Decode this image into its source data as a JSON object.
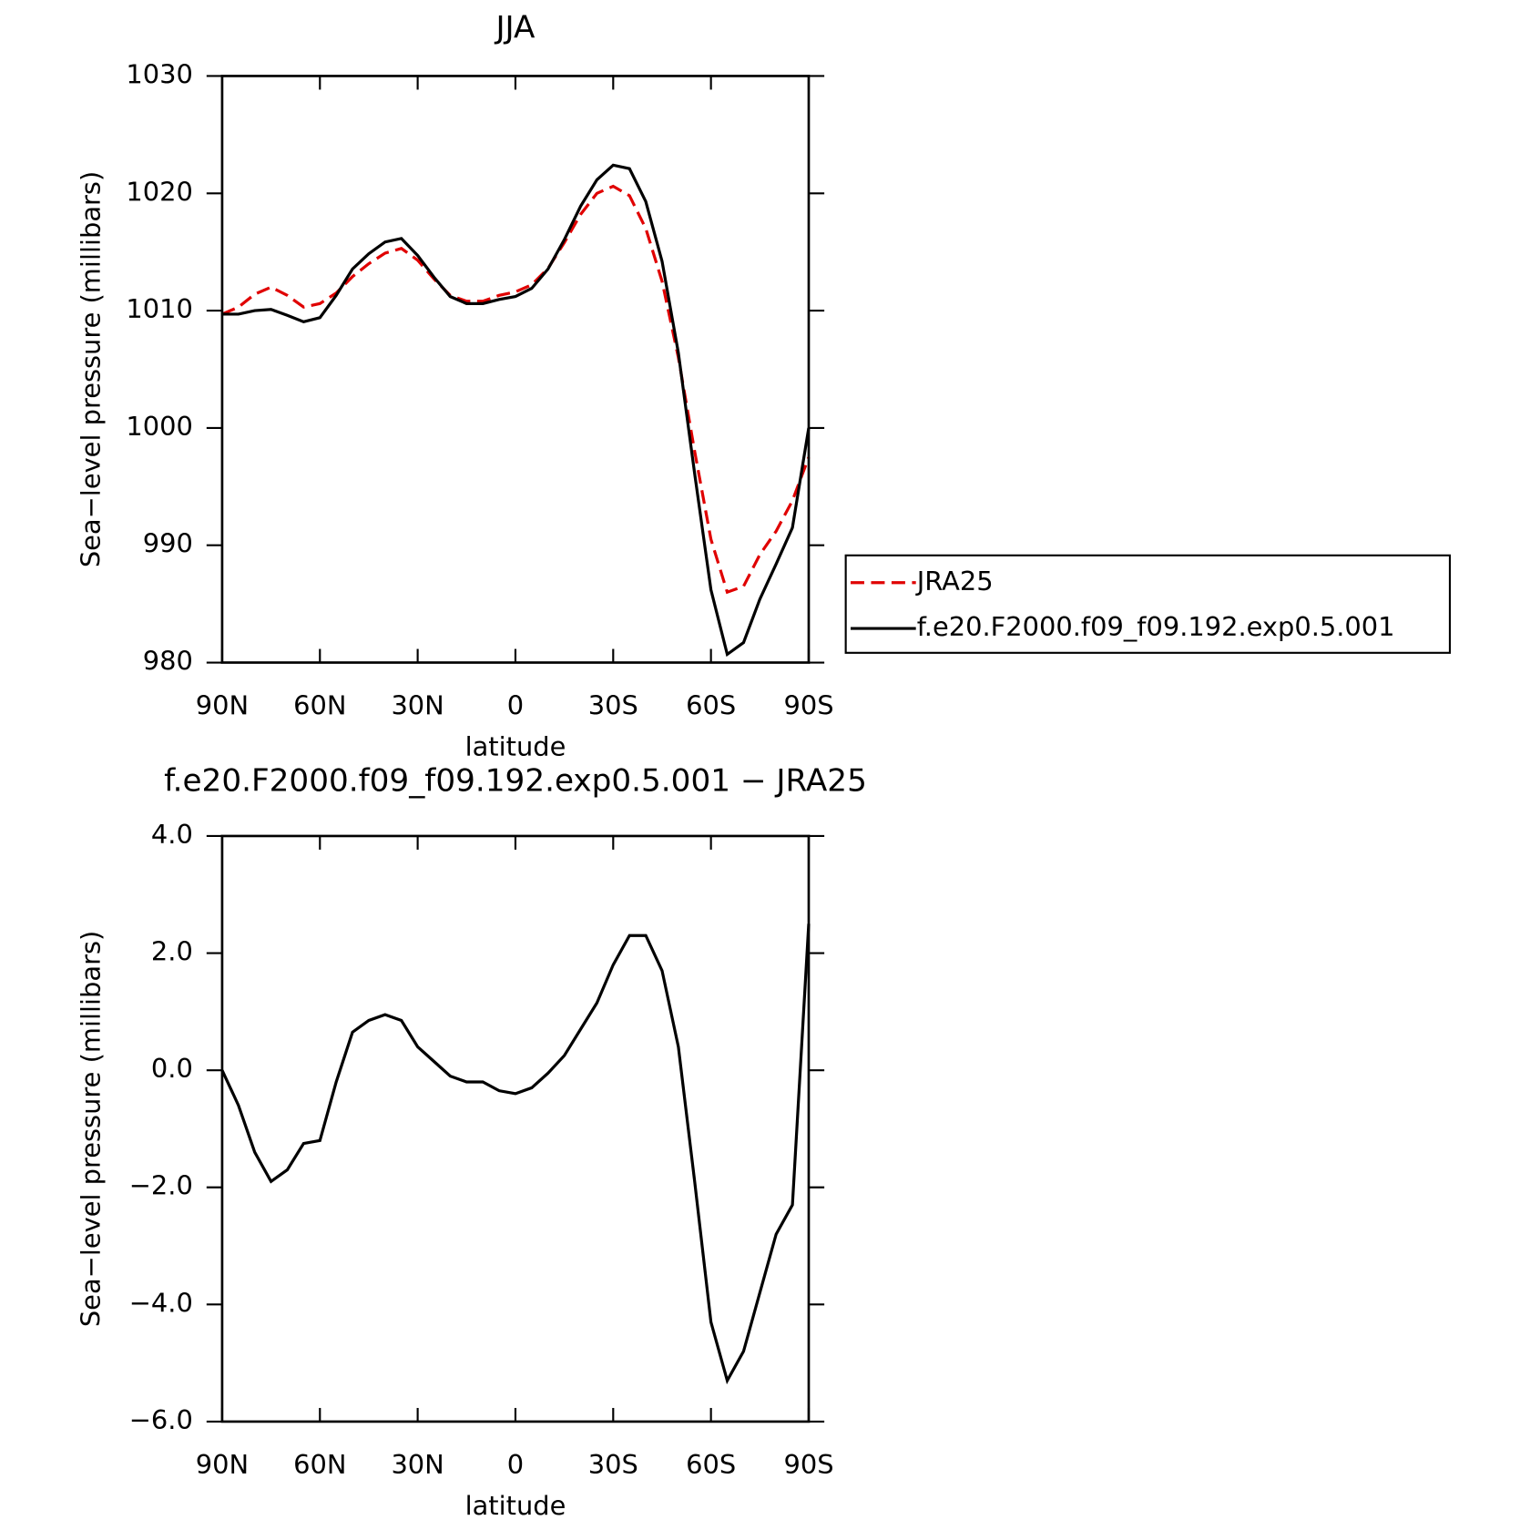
{
  "chart_data": [
    {
      "type": "line",
      "title": "JJA",
      "xlabel": "latitude",
      "ylabel": "Sea−level pressure (millibars)",
      "x": [
        90,
        85,
        80,
        75,
        70,
        65,
        60,
        55,
        50,
        45,
        40,
        35,
        30,
        25,
        20,
        15,
        10,
        5,
        0,
        -5,
        -10,
        -15,
        -20,
        -25,
        -30,
        -35,
        -40,
        -45,
        -50,
        -55,
        -60,
        -65,
        -70,
        -75,
        -80,
        -85,
        -90
      ],
      "xlim": [
        90,
        -90
      ],
      "xticks": [
        {
          "value": 90,
          "label": "90N"
        },
        {
          "value": 60,
          "label": "60N"
        },
        {
          "value": 30,
          "label": "30N"
        },
        0,
        {
          "value": -30,
          "label": "30S"
        },
        {
          "value": -60,
          "label": "60S"
        },
        {
          "value": -90,
          "label": "90S"
        }
      ],
      "ylim": [
        980,
        1030
      ],
      "yticks": [
        980,
        990,
        1000,
        1010,
        1020,
        1030
      ],
      "legend": "right",
      "series": [
        {
          "name": "JRA25",
          "color": "#e00000",
          "line_style": "dashed",
          "values": [
            1009.7,
            1010.3,
            1011.4,
            1012.0,
            1011.3,
            1010.3,
            1010.6,
            1011.5,
            1012.9,
            1014.0,
            1014.9,
            1015.3,
            1014.3,
            1012.7,
            1011.3,
            1010.8,
            1010.8,
            1011.3,
            1011.6,
            1012.2,
            1013.6,
            1015.8,
            1018.2,
            1020.0,
            1020.6,
            1019.8,
            1017.0,
            1012.5,
            1006.0,
            998.0,
            990.5,
            986.0,
            986.5,
            989.2,
            991.2,
            993.8,
            997.5
          ]
        },
        {
          "name": "f.e20.F2000.f09_f09.192.exp0.5.001",
          "color": "#000000",
          "line_style": "solid",
          "values": [
            1009.7,
            1009.7,
            1010.0,
            1010.1,
            1009.6,
            1009.05,
            1009.4,
            1011.3,
            1013.55,
            1014.85,
            1015.85,
            1016.15,
            1014.7,
            1012.85,
            1011.2,
            1010.6,
            1010.6,
            1010.95,
            1011.2,
            1011.9,
            1013.55,
            1016.05,
            1018.9,
            1021.15,
            1022.4,
            1022.1,
            1019.3,
            1014.2,
            1006.4,
            996.1,
            986.2,
            980.7,
            981.7,
            985.4,
            988.4,
            991.5,
            1000.0
          ]
        }
      ]
    },
    {
      "type": "line",
      "title": "f.e20.F2000.f09_f09.192.exp0.5.001 − JRA25",
      "xlabel": "latitude",
      "ylabel": "Sea−level pressure (millibars)",
      "x": [
        90,
        85,
        80,
        75,
        70,
        65,
        60,
        55,
        50,
        45,
        40,
        35,
        30,
        25,
        20,
        15,
        10,
        5,
        0,
        -5,
        -10,
        -15,
        -20,
        -25,
        -30,
        -35,
        -40,
        -45,
        -50,
        -55,
        -60,
        -65,
        -70,
        -75,
        -80,
        -85,
        -90
      ],
      "xlim": [
        90,
        -90
      ],
      "xticks": [
        {
          "value": 90,
          "label": "90N"
        },
        {
          "value": 60,
          "label": "60N"
        },
        {
          "value": 30,
          "label": "30N"
        },
        0,
        {
          "value": -30,
          "label": "30S"
        },
        {
          "value": -60,
          "label": "60S"
        },
        {
          "value": -90,
          "label": "90S"
        }
      ],
      "ylim": [
        -6,
        4
      ],
      "yticks": [
        {
          "value": -6,
          "label": "−6.0"
        },
        {
          "value": -4,
          "label": "−4.0"
        },
        {
          "value": -2,
          "label": "−2.0"
        },
        {
          "value": 0,
          "label": "0.0"
        },
        {
          "value": 2,
          "label": "2.0"
        },
        {
          "value": 4,
          "label": "4.0"
        }
      ],
      "series": [
        {
          "color": "#000000",
          "line_style": "solid",
          "values": [
            0.0,
            -0.6,
            -1.4,
            -1.9,
            -1.7,
            -1.25,
            -1.2,
            -0.2,
            0.65,
            0.85,
            0.95,
            0.85,
            0.4,
            0.15,
            -0.1,
            -0.2,
            -0.2,
            -0.35,
            -0.4,
            -0.3,
            -0.05,
            0.25,
            0.7,
            1.15,
            1.8,
            2.3,
            2.3,
            1.7,
            0.4,
            -1.9,
            -4.3,
            -5.3,
            -4.8,
            -3.8,
            -2.8,
            -2.3,
            2.5
          ]
        }
      ]
    }
  ]
}
